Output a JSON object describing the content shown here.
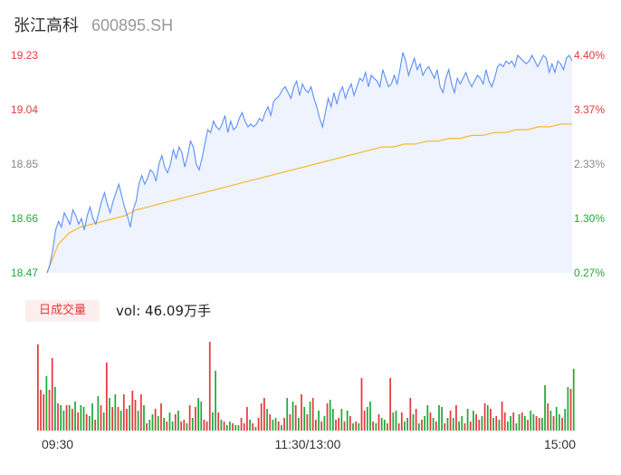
{
  "header": {
    "stock_name": "张江高科",
    "stock_code": "600895.SH"
  },
  "colors": {
    "up": "#e8383d",
    "down": "#1faa3c",
    "neutral": "#888888",
    "price_line": "#5b8ff9",
    "avg_line": "#f5b82e",
    "area_fill": "#eef3fd"
  },
  "volume_panel": {
    "tab_label": "日成交量",
    "vol_text": "vol: 46.09万手"
  },
  "chart_data": [
    {
      "type": "line",
      "title": "",
      "series": [
        {
          "name": "",
          "values": [
            18.47,
            18.5,
            18.55,
            18.62,
            18.65,
            18.63,
            18.68,
            18.66,
            18.64,
            18.69,
            18.67,
            18.64,
            18.66,
            18.62,
            18.67,
            18.7,
            18.66,
            18.64,
            18.68,
            18.72,
            18.75,
            18.71,
            18.68,
            18.72,
            18.75,
            18.78,
            18.74,
            18.7,
            18.67,
            18.63,
            18.69,
            18.72,
            18.78,
            18.81,
            18.78,
            18.8,
            18.83,
            18.82,
            18.79,
            18.85,
            18.88,
            18.84,
            18.82,
            18.85,
            18.9,
            18.87,
            18.91,
            18.89,
            18.84,
            18.88,
            18.93,
            18.91,
            18.85,
            18.83,
            18.87,
            18.92,
            18.97,
            18.96,
            19.0,
            18.98,
            18.97,
            18.99,
            19.02,
            18.96,
            19.0,
            18.97,
            18.98,
            19.01,
            19.03,
            19.0,
            18.98,
            18.99,
            18.98,
            18.99,
            19.01,
            19.0,
            19.03,
            19.05,
            19.02,
            19.07,
            19.08,
            19.09,
            19.11,
            19.12,
            19.1,
            19.08,
            19.12,
            19.14,
            19.09,
            19.13,
            19.11,
            19.1,
            19.12,
            19.08,
            19.05,
            19.01,
            18.98,
            19.03,
            19.08,
            19.05,
            19.1,
            19.06,
            19.1,
            19.12,
            19.08,
            19.11,
            19.13,
            19.09,
            19.12,
            19.15,
            19.14,
            19.17,
            19.12,
            19.16,
            19.15,
            19.14,
            19.12,
            19.18,
            19.15,
            19.12,
            19.13,
            19.16,
            19.13,
            19.18,
            19.24,
            19.21,
            19.16,
            19.19,
            19.22,
            19.18,
            19.2,
            19.16,
            19.18,
            19.19,
            19.17,
            19.15,
            19.18,
            19.12,
            19.1,
            19.15,
            19.18,
            19.13,
            19.1,
            19.15,
            19.13,
            19.15,
            19.17,
            19.14,
            19.12,
            19.14,
            19.16,
            19.15,
            19.13,
            19.18,
            19.14,
            19.12,
            19.15,
            19.19,
            19.2,
            19.19,
            19.21,
            19.2,
            19.21,
            19.19,
            19.23,
            19.22,
            19.21,
            19.2,
            19.21,
            19.23,
            19.21,
            19.19,
            19.21,
            19.23,
            19.22,
            19.17,
            19.2,
            19.17,
            19.21,
            19.2,
            19.18,
            19.22,
            19.23,
            19.21
          ]
        },
        {
          "name": "",
          "values": [
            18.47,
            18.57,
            18.61,
            18.63,
            18.64,
            18.65,
            18.66,
            18.67,
            18.69,
            18.7,
            18.71,
            18.72,
            18.73,
            18.74,
            18.75,
            18.76,
            18.77,
            18.78,
            18.79,
            18.8,
            18.81,
            18.82,
            18.83,
            18.84,
            18.85,
            18.86,
            18.87,
            18.88,
            18.89,
            18.9,
            18.91,
            18.91,
            18.92,
            18.92,
            18.93,
            18.93,
            18.94,
            18.94,
            18.95,
            18.95,
            18.96,
            18.96,
            18.97,
            18.97,
            18.98,
            18.98,
            18.99,
            18.99
          ]
        }
      ],
      "ylim": [
        18.47,
        19.23
      ],
      "y_left_ticks": [
        "19.23",
        "19.04",
        "18.85",
        "18.66",
        "18.47"
      ],
      "y_right_ticks": [
        "4.40%",
        "3.37%",
        "2.33%",
        "1.30%",
        "0.27%"
      ],
      "grid": false
    },
    {
      "type": "bar",
      "title": "",
      "x_ticks": [
        "09:30",
        "11:30/13:00",
        "15:00"
      ],
      "volumes": [
        95,
        45,
        40,
        60,
        45,
        80,
        48,
        30,
        28,
        22,
        28,
        28,
        24,
        32,
        20,
        28,
        26,
        18,
        16,
        30,
        12,
        38,
        28,
        20,
        75,
        36,
        26,
        40,
        26,
        22,
        40,
        24,
        28,
        44,
        34,
        22,
        40,
        28,
        8,
        12,
        18,
        24,
        16,
        30,
        14,
        10,
        20,
        10,
        18,
        22,
        10,
        12,
        8,
        28,
        14,
        26,
        36,
        32,
        12,
        10,
        98,
        20,
        66,
        20,
        12,
        10,
        6,
        10,
        8,
        6,
        6,
        14,
        8,
        26,
        12,
        8,
        4,
        14,
        30,
        36,
        24,
        18,
        12,
        14,
        10,
        6,
        14,
        36,
        18,
        32,
        28,
        14,
        40,
        26,
        18,
        32,
        36,
        12,
        22,
        10,
        16,
        30,
        34,
        24,
        12,
        14,
        24,
        10,
        22,
        16,
        8,
        10,
        8,
        58,
        22,
        26,
        32,
        10,
        8,
        18,
        14,
        12,
        8,
        58,
        20,
        22,
        8,
        20,
        10,
        14,
        36,
        18,
        24,
        8,
        12,
        16,
        28,
        20,
        14,
        10,
        28,
        26,
        8,
        14,
        22,
        14,
        28,
        10,
        16,
        8,
        24,
        10,
        22,
        18,
        12,
        16,
        30,
        28,
        24,
        14,
        16,
        12,
        32,
        20,
        10,
        16,
        20,
        8,
        18,
        20,
        16,
        12,
        22,
        18,
        16,
        14,
        14,
        50,
        30,
        22,
        16,
        26,
        18,
        14,
        24,
        48,
        46,
        68
      ],
      "directions": [
        "u",
        "u",
        "u",
        "d",
        "u",
        "u",
        "d",
        "u",
        "d",
        "d",
        "u",
        "d",
        "u",
        "d",
        "u",
        "d",
        "d",
        "u",
        "d",
        "d",
        "u",
        "d",
        "u",
        "d",
        "u",
        "d",
        "u",
        "d",
        "u",
        "d",
        "u",
        "u",
        "d",
        "u",
        "u",
        "d",
        "u",
        "d",
        "u",
        "d",
        "d",
        "u",
        "d",
        "u",
        "d",
        "u",
        "d",
        "d",
        "u",
        "d",
        "u",
        "u",
        "d",
        "u",
        "d",
        "u",
        "d",
        "d",
        "u",
        "u",
        "u",
        "d",
        "d",
        "u",
        "d",
        "u",
        "d",
        "d",
        "u",
        "d",
        "d",
        "u",
        "u",
        "u",
        "d",
        "u",
        "d",
        "u",
        "u",
        "u",
        "d",
        "u",
        "d",
        "d",
        "u",
        "d",
        "u",
        "d",
        "u",
        "d",
        "u",
        "d",
        "u",
        "d",
        "u",
        "d",
        "u",
        "u",
        "d",
        "u",
        "d",
        "u",
        "d",
        "d",
        "u",
        "u",
        "d",
        "u",
        "d",
        "u",
        "d",
        "u",
        "d",
        "u",
        "u",
        "d",
        "d",
        "u",
        "d",
        "u",
        "d",
        "d",
        "u",
        "u",
        "d",
        "d",
        "u",
        "u",
        "d",
        "d",
        "u",
        "d",
        "u",
        "d",
        "u",
        "d",
        "d",
        "u",
        "d",
        "u",
        "d",
        "d",
        "u",
        "d",
        "u",
        "d",
        "u",
        "d",
        "d",
        "u",
        "d",
        "u",
        "d",
        "u",
        "u",
        "d",
        "u",
        "d",
        "u",
        "d",
        "u",
        "d",
        "u",
        "u",
        "d",
        "d",
        "u",
        "d",
        "d",
        "u",
        "d",
        "u",
        "d",
        "d",
        "u",
        "u",
        "d",
        "d",
        "u",
        "d",
        "u",
        "d",
        "d",
        "u",
        "d",
        "d",
        "u"
      ]
    }
  ]
}
